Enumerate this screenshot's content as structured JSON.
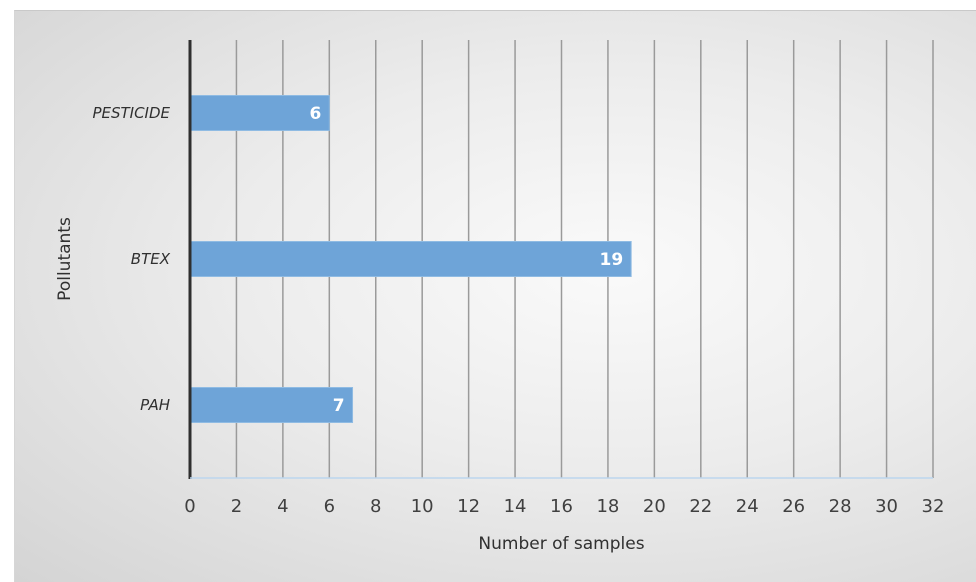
{
  "chart_data": {
    "type": "bar",
    "orientation": "horizontal",
    "categories": [
      "PAH",
      "BTEX",
      "PESTICIDE"
    ],
    "series": [
      {
        "values": [
          7,
          19,
          6
        ]
      }
    ],
    "xlabel": "Number of samples",
    "ylabel": "Pollutants",
    "xlim": [
      0,
      32
    ],
    "xticks": [
      "0",
      "2",
      "4",
      "6",
      "8",
      "10",
      "12",
      "14",
      "16",
      "18",
      "20",
      "22",
      "24",
      "26",
      "28",
      "30",
      "32"
    ],
    "grid": "vertical",
    "legend": "none",
    "colors": {
      "bar": "#6ea4d8",
      "bar_edge": "#8fbbe3",
      "grid": "#9a9a9a",
      "axis": "#2f2f2f"
    }
  }
}
